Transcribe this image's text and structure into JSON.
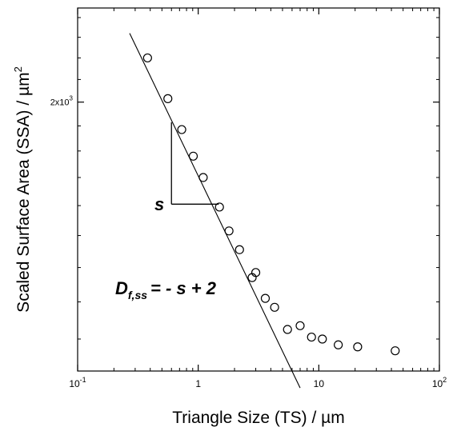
{
  "chart_data": {
    "type": "scatter",
    "xlabel": "Triangle Size (TS) / µm",
    "ylabel": "Scaled Surface Area (SSA) / µm",
    "ylabel_superscript": "2",
    "x_scale": "log",
    "y_scale": "log",
    "xlim": [
      0.1,
      100
    ],
    "ylim": [
      1120,
      2450
    ],
    "x_ticks": [
      {
        "value": 0.1,
        "base": "10",
        "exp": "-1"
      },
      {
        "value": 1,
        "label": "1"
      },
      {
        "value": 10,
        "label": "10"
      },
      {
        "value": 100,
        "base": "10",
        "exp": "2"
      }
    ],
    "y_ticks": [
      {
        "value": 2000,
        "label": "2x10",
        "exp": "3"
      }
    ],
    "grid": false,
    "series": [
      {
        "marker": "open-circle",
        "x": [
          0.38,
          0.56,
          0.73,
          0.91,
          1.1,
          1.5,
          1.8,
          2.2,
          2.8,
          3.0,
          3.6,
          4.3,
          5.5,
          7.0,
          8.7,
          10.7,
          14.5,
          21.0,
          43.0
        ],
        "y": [
          2200,
          2015,
          1885,
          1780,
          1700,
          1595,
          1515,
          1455,
          1370,
          1385,
          1310,
          1285,
          1225,
          1235,
          1205,
          1200,
          1185,
          1180,
          1170
        ]
      }
    ],
    "fit_line": {
      "x": [
        0.27,
        7.0
      ],
      "y": [
        2320,
        1080
      ]
    },
    "slope_triangle": {
      "x1": 0.6,
      "x2": 1.48,
      "y_top": 1915,
      "y_bottom": 1605
    },
    "annotations": {
      "slope": "s",
      "formula_main": "D",
      "formula_subscript": "f,ss",
      "formula_rest": "= - s + 2"
    }
  }
}
